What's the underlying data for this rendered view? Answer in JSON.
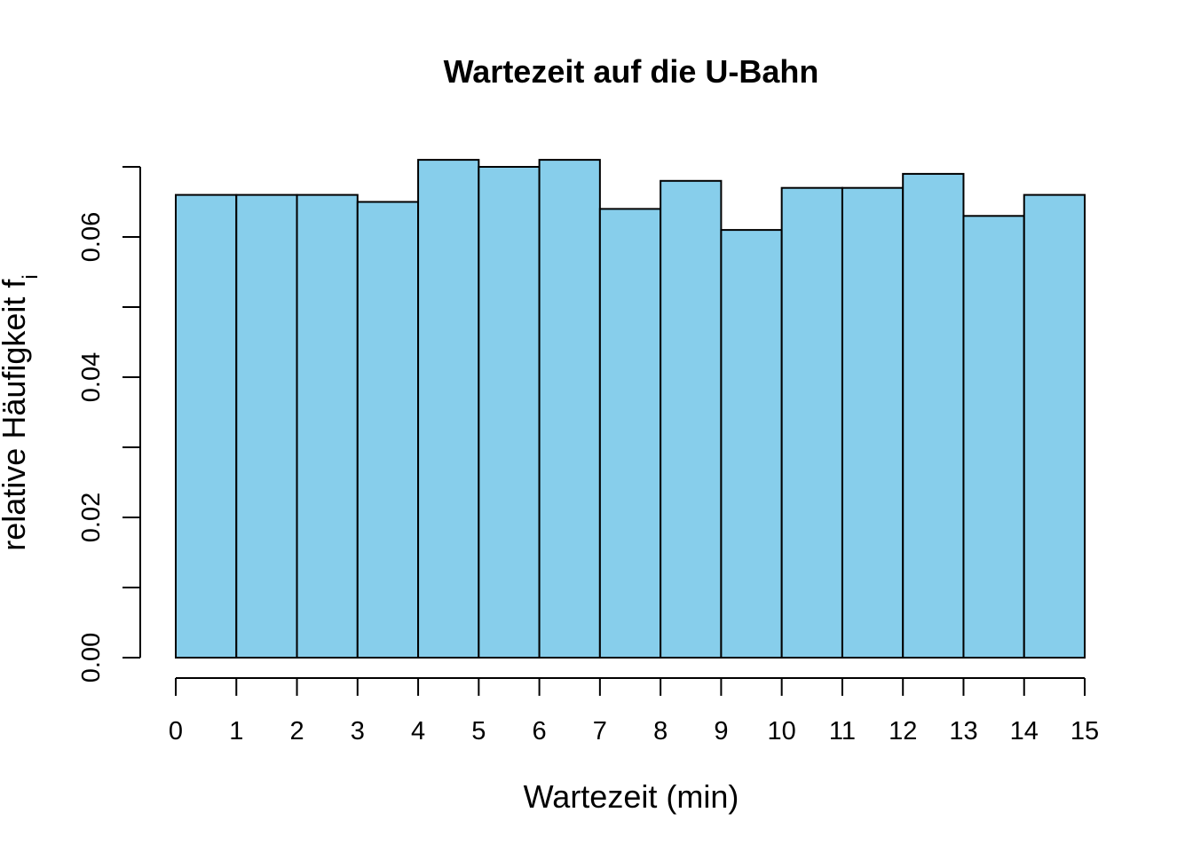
{
  "chart_data": {
    "type": "bar",
    "title": "Wartezeit auf die U-Bahn",
    "xlabel": "Wartezeit (min)",
    "ylabel_main": "relative Häufigkeit f",
    "ylabel_subscript": "i",
    "bin_edges": [
      0,
      1,
      2,
      3,
      4,
      5,
      6,
      7,
      8,
      9,
      10,
      11,
      12,
      13,
      14,
      15
    ],
    "values": [
      0.066,
      0.066,
      0.066,
      0.065,
      0.071,
      0.07,
      0.071,
      0.064,
      0.068,
      0.061,
      0.067,
      0.067,
      0.069,
      0.063,
      0.066
    ],
    "xlim": [
      0,
      15
    ],
    "ylim": [
      0,
      0.07
    ],
    "x_ticks": [
      "0",
      "1",
      "2",
      "3",
      "4",
      "5",
      "6",
      "7",
      "8",
      "9",
      "10",
      "11",
      "12",
      "13",
      "14",
      "15"
    ],
    "y_ticks": [
      0,
      0.01,
      0.02,
      0.03,
      0.04,
      0.05,
      0.06,
      0.07
    ],
    "y_tick_labels": [
      "0.00",
      "",
      "0.02",
      "",
      "0.04",
      "",
      "0.06",
      ""
    ],
    "bar_color": "#87CEEB",
    "grid": false
  }
}
